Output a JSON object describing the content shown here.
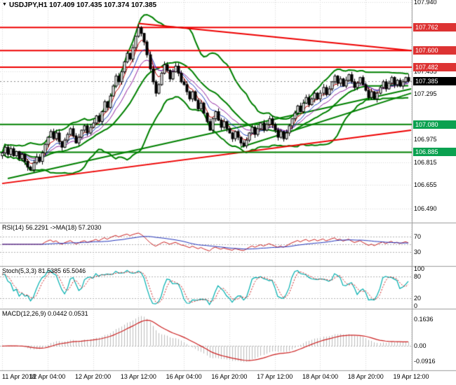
{
  "title": {
    "dropdown_icon": "▼",
    "text": "USDJPY,H1 107.409 107.435 107.374 107.385",
    "symbol": "USDJPY",
    "timeframe": "H1",
    "open": "107.409",
    "high": "107.435",
    "low": "107.374",
    "close": "107.385"
  },
  "colors": {
    "background": "#ffffff",
    "grid": "#d9d9d9",
    "panel_border": "#9b9b9b",
    "candle_up_fill": "#ffffff",
    "candle_down_fill": "#000000",
    "candle_outline": "#000000",
    "bollinger": "#008000",
    "resistance_line": "#ee0000",
    "support_line": "#008000",
    "trend_red": "#ee0000",
    "trend_green": "#008000",
    "badge_resistance": "#dd3333",
    "badge_support": "#0aa150",
    "badge_current": "#000000",
    "ema_fast": "#c00000",
    "ema_mid": "#2040c0",
    "ema_slow": "#9020a0",
    "rsi_line": "#cc2020",
    "rsi_ma": "#2233bb",
    "stoch_k": "#00b0b0",
    "stoch_d": "#cc2020",
    "macd_hist": "#bdbdbd",
    "macd_signal": "#cc2020",
    "axis_text": "#000000"
  },
  "chart_data": [
    {
      "id": "main",
      "type": "candlestick",
      "title": "USDJPY,H1",
      "last_candle": {
        "open": 107.409,
        "high": 107.435,
        "low": 107.374,
        "close": 107.385
      },
      "current_price": 107.385,
      "y_range": [
        106.39,
        107.955
      ],
      "closes": [
        106.88,
        106.92,
        106.87,
        106.91,
        106.86,
        106.89,
        106.84,
        106.87,
        106.82,
        106.78,
        106.76,
        106.81,
        106.85,
        106.82,
        106.88,
        106.94,
        106.99,
        107.03,
        106.98,
        107.02,
        106.96,
        106.92,
        106.97,
        107.01,
        107.05,
        107.0,
        106.95,
        106.99,
        107.04,
        107.07,
        107.02,
        107.06,
        107.09,
        107.14,
        107.1,
        107.17,
        107.24,
        107.2,
        107.28,
        107.35,
        107.42,
        107.38,
        107.45,
        107.52,
        107.58,
        107.54,
        107.62,
        107.7,
        107.76,
        107.72,
        107.66,
        107.57,
        107.47,
        107.38,
        107.3,
        107.36,
        107.44,
        107.5,
        107.46,
        107.4,
        107.45,
        107.49,
        107.44,
        107.38,
        107.36,
        107.31,
        107.26,
        107.31,
        107.25,
        107.19,
        107.23,
        107.16,
        107.1,
        107.04,
        107.12,
        107.17,
        107.11,
        107.06,
        107.1,
        107.05,
        107.02,
        106.98,
        107.03,
        106.99,
        106.95,
        106.93,
        106.97,
        107.02,
        107.06,
        107.01,
        107.05,
        107.09,
        107.04,
        107.08,
        107.12,
        107.08,
        107.04,
        106.99,
        107.03,
        106.98,
        107.02,
        107.07,
        107.12,
        107.16,
        107.21,
        107.17,
        107.23,
        107.27,
        107.22,
        107.26,
        107.3,
        107.26,
        107.3,
        107.34,
        107.29,
        107.33,
        107.38,
        107.42,
        107.37,
        107.4,
        107.35,
        107.39,
        107.43,
        107.38,
        107.34,
        107.37,
        107.41,
        107.36,
        107.32,
        107.27,
        107.31,
        107.26,
        107.3,
        107.34,
        107.38,
        107.33,
        107.37,
        107.41,
        107.36,
        107.39,
        107.35,
        107.38,
        107.41,
        107.385
      ],
      "x_ticks": [
        {
          "bar": 0,
          "label": "11 Apr 2018"
        },
        {
          "bar": 16,
          "label": "12 Apr 04:00"
        },
        {
          "bar": 32,
          "label": "12 Apr 20:00"
        },
        {
          "bar": 48,
          "label": "13 Apr 12:00"
        },
        {
          "bar": 64,
          "label": "16 Apr 04:00"
        },
        {
          "bar": 80,
          "label": "16 Apr 20:00"
        },
        {
          "bar": 96,
          "label": "17 Apr 12:00"
        },
        {
          "bar": 112,
          "label": "18 Apr 04:00"
        },
        {
          "bar": 128,
          "label": "18 Apr 20:00"
        },
        {
          "bar": 144,
          "label": "19 Apr 12:00"
        }
      ],
      "y_ticks_plain": [
        {
          "value": 107.94,
          "label": "107.940"
        },
        {
          "value": 107.455,
          "label": "107.455"
        },
        {
          "value": 107.295,
          "label": "107.295"
        },
        {
          "value": 106.975,
          "label": "106.975"
        },
        {
          "value": 106.815,
          "label": "106.815"
        },
        {
          "value": 106.655,
          "label": "106.655"
        },
        {
          "value": 106.49,
          "label": "106.490"
        }
      ],
      "price_badges": [
        {
          "value": 107.762,
          "label": "107.762",
          "kind": "resistance"
        },
        {
          "value": 107.6,
          "label": "107.600",
          "kind": "resistance"
        },
        {
          "value": 107.482,
          "label": "107.482",
          "kind": "resistance"
        },
        {
          "value": 107.385,
          "label": "107.385",
          "kind": "current"
        },
        {
          "value": 107.08,
          "label": "107.080",
          "kind": "support"
        },
        {
          "value": 106.885,
          "label": "106.885",
          "kind": "support"
        }
      ],
      "horizontal_levels": [
        {
          "price": 107.762,
          "color_key": "resistance_line",
          "width": 2
        },
        {
          "price": 107.6,
          "color_key": "resistance_line",
          "width": 2
        },
        {
          "price": 107.482,
          "color_key": "resistance_line",
          "width": 2
        },
        {
          "price": 107.08,
          "color_key": "support_line",
          "width": 2
        },
        {
          "price": 106.885,
          "color_key": "support_line",
          "width": 2
        }
      ],
      "trendlines": [
        {
          "from_bar": 48,
          "from_price": 107.79,
          "to_bar": 144,
          "to_price": 107.6,
          "color_key": "trend_red",
          "width": 2
        },
        {
          "from_bar": 0,
          "from_price": 106.665,
          "to_bar": 144,
          "to_price": 107.04,
          "color_key": "trend_red",
          "width": 2
        },
        {
          "from_bar": 2,
          "from_price": 106.7,
          "to_bar": 144,
          "to_price": 107.33,
          "color_key": "trend_green",
          "width": 2
        },
        {
          "from_bar": 84,
          "from_price": 106.92,
          "to_bar": 144,
          "to_price": 107.3,
          "color_key": "trend_green",
          "width": 2
        }
      ],
      "overlays": {
        "bollinger": {
          "period": 20,
          "deviation": 2
        },
        "emas": [
          {
            "period": 5,
            "color_key": "ema_fast"
          },
          {
            "period": 9,
            "color_key": "ema_mid"
          },
          {
            "period": 14,
            "color_key": "ema_slow"
          }
        ]
      }
    },
    {
      "id": "rsi",
      "type": "line",
      "header": "RSI(14) 56.2291  ->MA(18) 57.2030",
      "period": 14,
      "value": 56.2291,
      "ma_period": 18,
      "ma_value": 57.203,
      "range": [
        0,
        100
      ],
      "levels": [
        70,
        50,
        30
      ],
      "y_ticks": [
        {
          "value": 70,
          "label": "70"
        },
        {
          "value": 30,
          "label": "30"
        }
      ]
    },
    {
      "id": "stoch",
      "type": "line",
      "header": "Stoch(5,3,3) 81.5385 65.5046",
      "k_period": 5,
      "d_period": 3,
      "slowing": 3,
      "k_value": 81.5385,
      "d_value": 65.5046,
      "range": [
        0,
        100
      ],
      "levels": [
        80,
        20
      ],
      "y_ticks": [
        {
          "value": 100,
          "label": "100"
        },
        {
          "value": 80,
          "label": "80"
        },
        {
          "value": 20,
          "label": "20"
        },
        {
          "value": 0,
          "label": "0"
        }
      ]
    },
    {
      "id": "macd",
      "type": "histogram+line",
      "header": "MACD(12,26,9) 0.0442 0.0531",
      "fast": 12,
      "slow": 26,
      "signal": 9,
      "macd_value": 0.0442,
      "signal_value": 0.0531,
      "range": [
        -0.13,
        0.21
      ],
      "y_ticks": [
        {
          "value": 0.1636,
          "label": "0.1636"
        },
        {
          "value": 0,
          "label": "0.00"
        },
        {
          "value": -0.0916,
          "label": "-0.0916"
        }
      ]
    }
  ]
}
